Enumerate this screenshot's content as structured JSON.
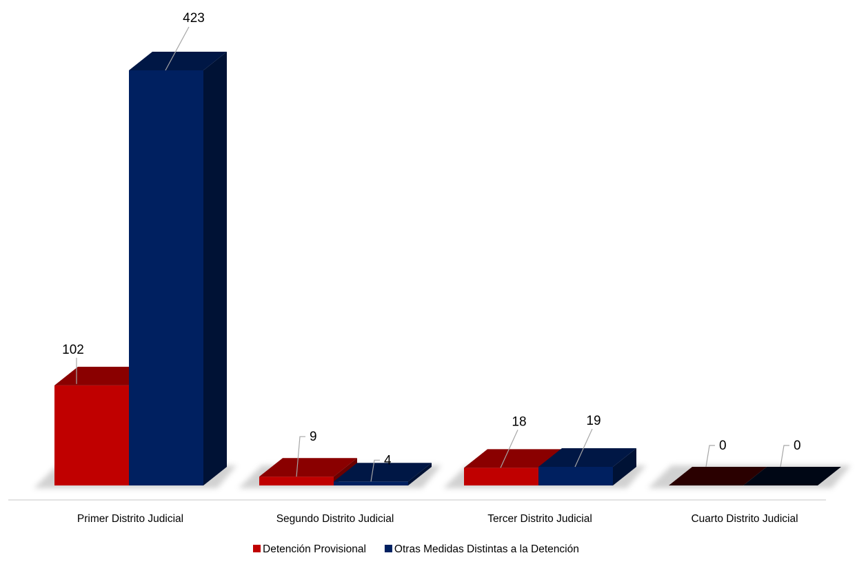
{
  "chart_data": {
    "type": "bar",
    "style": "3d-clustered-column",
    "categories": [
      "Primer Distrito Judicial",
      "Segundo Distrito Judicial",
      "Tercer Distrito Judicial",
      "Cuarto Distrito Judicial"
    ],
    "series": [
      {
        "name": "Detención Provisional",
        "values": [
          102,
          9,
          18,
          0
        ],
        "color": "#c00000"
      },
      {
        "name": "Otras Medidas Distintas a la Detención",
        "values": [
          423,
          4,
          19,
          0
        ],
        "color": "#002060"
      }
    ],
    "title": "",
    "xlabel": "",
    "ylabel": "",
    "ylim": [
      0,
      423
    ],
    "grid": false,
    "legend_position": "bottom",
    "data_labels": true
  }
}
